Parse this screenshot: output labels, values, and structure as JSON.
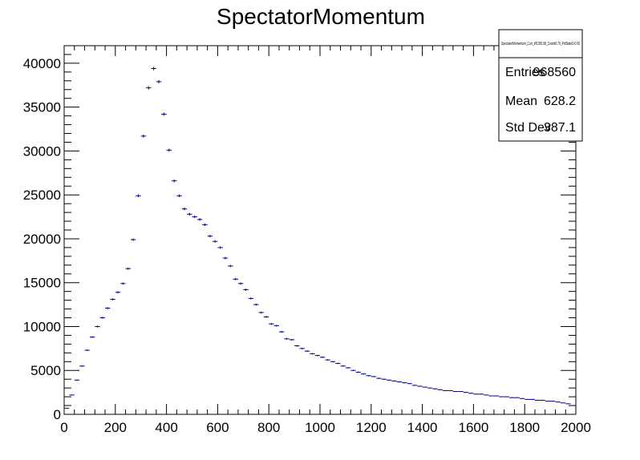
{
  "chart_data": {
    "type": "scatter",
    "title": "SpectatorMomentum",
    "xlabel": "",
    "ylabel": "",
    "xlim": [
      0,
      2000
    ],
    "ylim": [
      0,
      42000
    ],
    "bin_width": 20,
    "x_ticks": [
      "0",
      "200",
      "400",
      "600",
      "800",
      "1000",
      "1200",
      "1400",
      "1600",
      "1800",
      "2000"
    ],
    "y_ticks": [
      "0",
      "5000",
      "10000",
      "15000",
      "20000",
      "25000",
      "30000",
      "35000",
      "40000"
    ],
    "grid": false,
    "legend": "none",
    "marker_color": "#00008b",
    "stats": {
      "name": "SpectatorMomentum_Curr_W1355.08_Cosmt0.70_PolStateD-0.50",
      "entries_label": "Entries",
      "entries_value": "968560",
      "mean_label": "Mean",
      "mean_value": "628.2",
      "std_label": "Std Dev",
      "std_value": "387.1"
    },
    "series": [
      {
        "x": [
          10,
          30,
          50,
          70,
          90,
          110,
          130,
          150,
          170,
          190,
          210,
          230,
          250,
          270,
          290,
          310,
          330,
          350,
          370,
          390,
          410,
          430,
          450,
          470,
          490,
          510,
          530,
          550,
          570,
          590,
          610,
          630,
          650,
          670,
          690,
          710,
          730,
          750,
          770,
          790,
          810,
          830,
          850,
          870,
          890,
          910,
          930,
          950,
          970,
          990,
          1010,
          1030,
          1050,
          1070,
          1090,
          1110,
          1130,
          1150,
          1170,
          1190,
          1210,
          1230,
          1250,
          1270,
          1290,
          1310,
          1330,
          1350,
          1370,
          1390,
          1410,
          1430,
          1450,
          1470,
          1490,
          1510,
          1530,
          1550,
          1570,
          1590,
          1610,
          1630,
          1650,
          1670,
          1690,
          1710,
          1730,
          1750,
          1770,
          1790,
          1810,
          1830,
          1850,
          1870,
          1890,
          1910,
          1930,
          1950,
          1970,
          1990
        ],
        "values": [
          700,
          2200,
          3900,
          5500,
          7300,
          8800,
          10000,
          11000,
          12100,
          13100,
          13900,
          14900,
          16600,
          19900,
          24900,
          31700,
          37200,
          39400,
          37900,
          34200,
          30100,
          26600,
          24900,
          23400,
          22800,
          22500,
          22200,
          21600,
          20300,
          19700,
          19000,
          17800,
          16900,
          15400,
          14900,
          14200,
          13200,
          12500,
          11600,
          11100,
          10300,
          10100,
          9400,
          8600,
          8500,
          7800,
          7500,
          7200,
          6900,
          6700,
          6500,
          6200,
          6000,
          5800,
          5500,
          5300,
          5000,
          4800,
          4600,
          4400,
          4300,
          4100,
          4000,
          3900,
          3800,
          3700,
          3600,
          3500,
          3300,
          3200,
          3100,
          3000,
          2900,
          2800,
          2700,
          2700,
          2600,
          2600,
          2500,
          2400,
          2300,
          2300,
          2200,
          2100,
          2100,
          2000,
          2000,
          1900,
          1900,
          1800,
          1700,
          1700,
          1600,
          1600,
          1500,
          1500,
          1400,
          1300,
          1200,
          1000
        ]
      }
    ]
  }
}
